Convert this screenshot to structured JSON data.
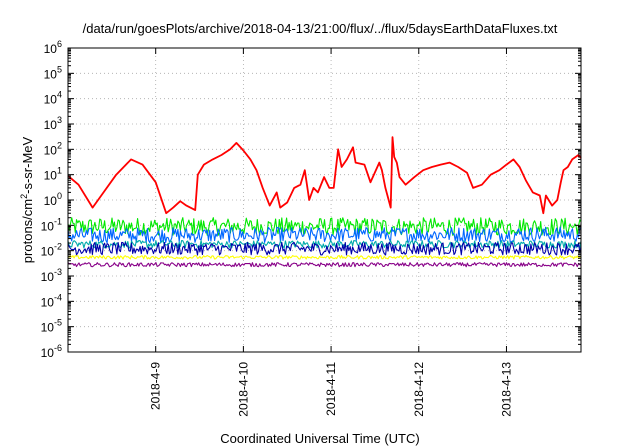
{
  "chart_data": {
    "type": "line",
    "title": "/data/run/goesPlots/archive/2018-04-13/21:00/flux/../flux/5daysEarthDataFluxes.txt",
    "xlabel": "Coordinated Universal Time (UTC)",
    "ylabel": {
      "base": "protons/cm",
      "sup": "2",
      "rest": "-s-sr-MeV"
    },
    "y_scale": "log",
    "ylim": [
      1e-06,
      1000000.0
    ],
    "xlim": [
      0,
      5.85
    ],
    "x_unit": "days since 2018-04-08 00:00 UTC",
    "grid": true,
    "legend": "none",
    "y_ticks": [
      {
        "value": 1e-06,
        "base": "10",
        "exp": "-6"
      },
      {
        "value": 1e-05,
        "base": "10",
        "exp": "-5"
      },
      {
        "value": 0.0001,
        "base": "10",
        "exp": "-4"
      },
      {
        "value": 0.001,
        "base": "10",
        "exp": "-3"
      },
      {
        "value": 0.01,
        "base": "10",
        "exp": "-2"
      },
      {
        "value": 0.1,
        "base": "10",
        "exp": "-1"
      },
      {
        "value": 1,
        "base": "10",
        "exp": "0"
      },
      {
        "value": 10,
        "base": "10",
        "exp": "1"
      },
      {
        "value": 100,
        "base": "10",
        "exp": "2"
      },
      {
        "value": 1000.0,
        "base": "10",
        "exp": "3"
      },
      {
        "value": 10000.0,
        "base": "10",
        "exp": "4"
      },
      {
        "value": 100000.0,
        "base": "10",
        "exp": "5"
      },
      {
        "value": 1000000.0,
        "base": "10",
        "exp": "6"
      }
    ],
    "x_ticks": [
      {
        "value": 1,
        "label": "2018-4-9"
      },
      {
        "value": 2,
        "label": "2018-4-10"
      },
      {
        "value": 3,
        "label": "2018-4-11"
      },
      {
        "value": 4,
        "label": "2018-4-12"
      },
      {
        "value": 5,
        "label": "2018-4-13"
      }
    ],
    "series": [
      {
        "color": "#ff0000",
        "noise": 0.0,
        "points": [
          [
            0,
            9
          ],
          [
            0.12,
            4
          ],
          [
            0.28,
            0.5
          ],
          [
            0.38,
            1.5
          ],
          [
            0.55,
            10
          ],
          [
            0.72,
            40
          ],
          [
            0.85,
            25
          ],
          [
            1.0,
            5
          ],
          [
            1.12,
            0.3
          ],
          [
            1.2,
            0.5
          ],
          [
            1.28,
            0.9
          ],
          [
            1.35,
            0.6
          ],
          [
            1.45,
            0.4
          ],
          [
            1.48,
            10
          ],
          [
            1.55,
            25
          ],
          [
            1.65,
            40
          ],
          [
            1.75,
            60
          ],
          [
            1.85,
            100
          ],
          [
            1.92,
            180
          ],
          [
            2.0,
            90
          ],
          [
            2.08,
            40
          ],
          [
            2.15,
            15
          ],
          [
            2.22,
            3
          ],
          [
            2.3,
            0.6
          ],
          [
            2.38,
            2
          ],
          [
            2.42,
            0.5
          ],
          [
            2.5,
            0.8
          ],
          [
            2.58,
            3
          ],
          [
            2.65,
            4
          ],
          [
            2.7,
            15
          ],
          [
            2.75,
            1
          ],
          [
            2.8,
            3
          ],
          [
            2.85,
            2
          ],
          [
            2.92,
            8
          ],
          [
            2.98,
            3
          ],
          [
            3.03,
            3
          ],
          [
            3.08,
            100
          ],
          [
            3.12,
            20
          ],
          [
            3.18,
            40
          ],
          [
            3.25,
            120
          ],
          [
            3.28,
            30
          ],
          [
            3.38,
            25
          ],
          [
            3.45,
            5
          ],
          [
            3.55,
            30
          ],
          [
            3.58,
            15
          ],
          [
            3.62,
            3
          ],
          [
            3.68,
            0.5
          ],
          [
            3.7,
            300
          ],
          [
            3.72,
            50
          ],
          [
            3.75,
            30
          ],
          [
            3.78,
            8
          ],
          [
            3.85,
            4
          ],
          [
            3.95,
            8
          ],
          [
            4.05,
            15
          ],
          [
            4.15,
            20
          ],
          [
            4.25,
            25
          ],
          [
            4.35,
            30
          ],
          [
            4.45,
            20
          ],
          [
            4.55,
            12
          ],
          [
            4.62,
            3
          ],
          [
            4.72,
            4
          ],
          [
            4.82,
            10
          ],
          [
            4.92,
            15
          ],
          [
            5.0,
            25
          ],
          [
            5.08,
            40
          ],
          [
            5.15,
            20
          ],
          [
            5.22,
            6
          ],
          [
            5.3,
            2
          ],
          [
            5.38,
            1.5
          ],
          [
            5.42,
            0.3
          ],
          [
            5.45,
            1.5
          ],
          [
            5.52,
            0.6
          ],
          [
            5.58,
            1
          ],
          [
            5.62,
            5
          ],
          [
            5.65,
            15
          ],
          [
            5.7,
            20
          ],
          [
            5.75,
            40
          ],
          [
            5.82,
            60
          ],
          [
            5.85,
            45
          ]
        ]
      },
      {
        "color": "#00e800",
        "noise": 0.35,
        "points": [
          [
            0,
            0.09
          ],
          [
            5.85,
            0.09
          ]
        ]
      },
      {
        "color": "#0066ff",
        "noise": 0.3,
        "points": [
          [
            0,
            0.04
          ],
          [
            5.85,
            0.045
          ]
        ]
      },
      {
        "color": "#00aaaa",
        "noise": 0.15,
        "points": [
          [
            0,
            0.018
          ],
          [
            5.85,
            0.018
          ]
        ]
      },
      {
        "color": "#0000aa",
        "noise": 0.25,
        "points": [
          [
            0,
            0.012
          ],
          [
            5.85,
            0.012
          ]
        ]
      },
      {
        "color": "#ffff00",
        "noise": 0.07,
        "points": [
          [
            0,
            0.0055
          ],
          [
            5.85,
            0.0055
          ]
        ]
      },
      {
        "color": "#880088",
        "noise": 0.08,
        "points": [
          [
            0,
            0.0028
          ],
          [
            5.85,
            0.0028
          ]
        ]
      }
    ]
  }
}
